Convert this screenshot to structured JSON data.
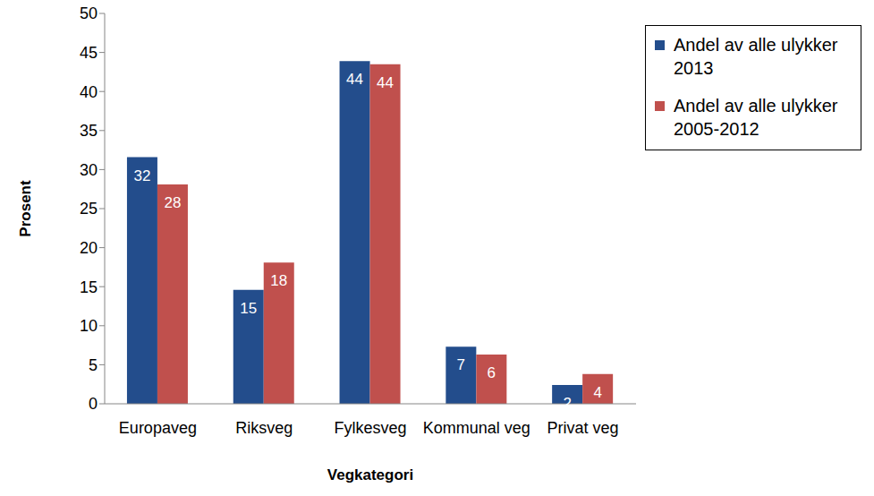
{
  "chart_data": {
    "type": "bar",
    "x_label": "Vegkategori",
    "y_label": "Prosent",
    "categories": [
      "Europaveg",
      "Riksveg",
      "Fylkesveg",
      "Kommunal veg",
      "Privat veg"
    ],
    "series": [
      {
        "name": "Andel av alle ulykker 2013",
        "color": "#234d8c",
        "values": [
          31.6,
          14.6,
          43.9,
          7.3,
          2.4
        ],
        "value_labels": [
          "32",
          "15",
          "44",
          "7",
          "2"
        ]
      },
      {
        "name": "Andel av alle ulykker 2005-2012",
        "color": "#c0504d",
        "values": [
          28.1,
          18.1,
          43.5,
          6.3,
          3.8
        ],
        "value_labels": [
          "28",
          "18",
          "44",
          "6",
          "4"
        ]
      }
    ],
    "ylim": [
      0,
      50
    ],
    "yticks": [
      0,
      5,
      10,
      15,
      20,
      25,
      30,
      35,
      40,
      45,
      50
    ],
    "grid": false,
    "legend": "upper right",
    "data_labels": true
  }
}
